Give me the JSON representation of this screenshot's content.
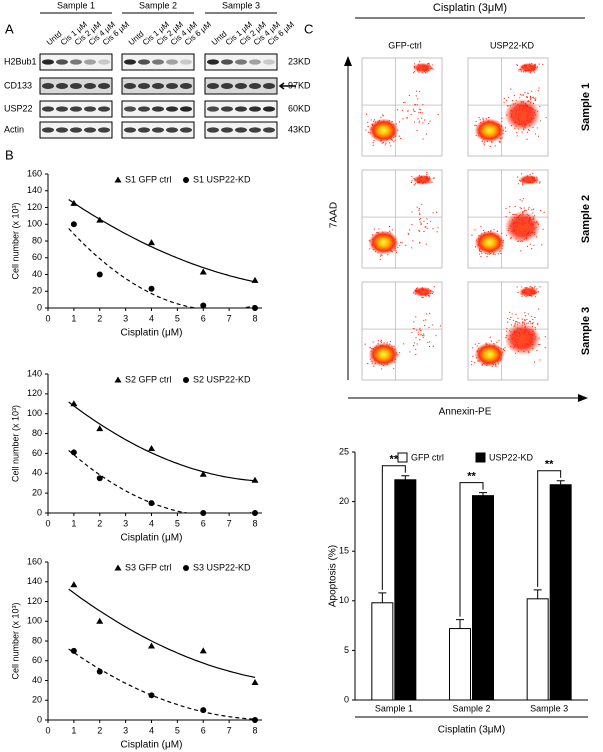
{
  "panel_a": {
    "label": "A",
    "samples": [
      "Sample 1",
      "Sample 2",
      "Sample 3"
    ],
    "lanes": [
      "Untd",
      "Cis 1 μM",
      "Cis 2 μM",
      "Cis 4 μM",
      "Cis 6 μM"
    ],
    "rows": [
      {
        "name": "H2Bub1",
        "size": "23KD"
      },
      {
        "name": "CD133",
        "size": "97KD"
      },
      {
        "name": "USP22",
        "size": "60KD"
      },
      {
        "name": "Actin",
        "size": "43KD"
      }
    ]
  },
  "panel_b": {
    "label": "B"
  },
  "panel_c": {
    "label": "C",
    "title": "Cisplatin (3μM)",
    "columns": [
      "GFP-ctrl",
      "USP22-KD"
    ],
    "rows": [
      "Sample 1",
      "Sample 2",
      "Sample 3"
    ],
    "y_label": "7AAD",
    "x_label": "Annexin-PE"
  },
  "chart_data": [
    {
      "type": "scatter",
      "x": [
        1,
        2,
        4,
        6,
        8
      ],
      "xlim": [
        0,
        8
      ],
      "xticks": [
        0,
        1,
        2,
        3,
        4,
        5,
        6,
        7,
        8
      ],
      "ylim": [
        0,
        160
      ],
      "yticks": [
        0,
        20,
        40,
        60,
        80,
        100,
        120,
        140,
        160
      ],
      "xlabel": "Cisplatin (μM)",
      "ylabel": "Cell number (x 10³)",
      "series": [
        {
          "name": "S1 GFP ctrl",
          "marker": "triangle",
          "trendline": "solid",
          "color": "#000000",
          "values": [
            125,
            105,
            78,
            43,
            33
          ]
        },
        {
          "name": "S1 USP22-KD",
          "marker": "circle",
          "trendline": "dashed",
          "color": "#000000",
          "values": [
            100,
            40,
            23,
            3,
            0
          ]
        }
      ]
    },
    {
      "type": "scatter",
      "x": [
        1,
        2,
        4,
        6,
        8
      ],
      "xlim": [
        0,
        8
      ],
      "xticks": [
        0,
        1,
        2,
        3,
        4,
        5,
        6,
        7,
        8
      ],
      "ylim": [
        0,
        140
      ],
      "yticks": [
        0,
        20,
        40,
        60,
        80,
        100,
        120,
        140
      ],
      "xlabel": "Cisplatin (μM)",
      "ylabel": "Cell number (x 10³)",
      "series": [
        {
          "name": "S2 GFP ctrl",
          "marker": "triangle",
          "trendline": "solid",
          "color": "#000000",
          "values": [
            110,
            85,
            65,
            39,
            33
          ]
        },
        {
          "name": "S2 USP22-KD",
          "marker": "circle",
          "trendline": "dashed",
          "color": "#000000",
          "values": [
            61,
            35,
            10,
            0,
            0
          ]
        }
      ]
    },
    {
      "type": "scatter",
      "x": [
        1,
        2,
        4,
        6,
        8
      ],
      "xlim": [
        0,
        8
      ],
      "xticks": [
        0,
        1,
        2,
        3,
        4,
        5,
        6,
        7,
        8
      ],
      "ylim": [
        0,
        160
      ],
      "yticks": [
        0,
        20,
        40,
        60,
        80,
        100,
        120,
        140,
        160
      ],
      "xlabel": "Cisplatin (μM)",
      "ylabel": "Cell number (x 10³)",
      "series": [
        {
          "name": "S3 GFP ctrl",
          "marker": "triangle",
          "trendline": "solid",
          "color": "#000000",
          "values": [
            137,
            100,
            75,
            70,
            38
          ]
        },
        {
          "name": "S3 USP22-KD",
          "marker": "circle",
          "trendline": "dashed",
          "color": "#000000",
          "values": [
            70,
            49,
            25,
            10,
            0
          ]
        }
      ]
    },
    {
      "type": "bar",
      "categories": [
        "Sample 1",
        "Sample 2",
        "Sample 3"
      ],
      "ylim": [
        0,
        25
      ],
      "yticks": [
        0,
        5,
        10,
        15,
        20,
        25
      ],
      "ylabel": "Apoptosis (%)",
      "xlabel": "Cisplatin (3μM)",
      "annotations": [
        "**",
        "**",
        "**"
      ],
      "series": [
        {
          "name": "GFP ctrl",
          "color": "#ffffff",
          "values": [
            9.8,
            7.2,
            10.2
          ],
          "errors": [
            1.0,
            0.9,
            0.9
          ]
        },
        {
          "name": "USP22-KD",
          "color": "#000000",
          "values": [
            22.2,
            20.6,
            21.7
          ],
          "errors": [
            0.4,
            0.3,
            0.4
          ]
        }
      ]
    }
  ]
}
